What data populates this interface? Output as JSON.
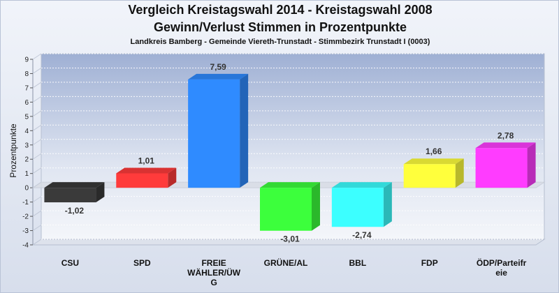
{
  "title": "Vergleich Kreistagswahl 2014 - Kreistagswahl 2008",
  "subtitle": "Gewinn/Verlust Stimmen in Prozentpunkte",
  "caption": "Landkreis Bamberg - Gemeinde Viereth-Trunstadt - Stimmbezirk Trunstadt I (0003)",
  "chart_data": {
    "type": "bar",
    "ylabel": "Prozentpunkte",
    "xlabel": "",
    "ylim": [
      -4,
      9
    ],
    "yticks": [
      "-4",
      "-3",
      "-2",
      "-1",
      "0",
      "1",
      "2",
      "3",
      "4",
      "5",
      "6",
      "7",
      "8",
      "9"
    ],
    "grid": true,
    "categories": [
      "CSU",
      "SPD",
      "FREIE WÄHLER/ÜW G",
      "GRÜNE/AL",
      "BBL",
      "FDP",
      "ÖDP/Parteifr eie"
    ],
    "category_lines": [
      [
        "CSU"
      ],
      [
        "SPD"
      ],
      [
        "FREIE",
        "WÄHLER/ÜW",
        "G"
      ],
      [
        "GRÜNE/AL"
      ],
      [
        "BBL"
      ],
      [
        "FDP"
      ],
      [
        "ÖDP/Parteifr",
        "eie"
      ]
    ],
    "values": [
      -1.02,
      1.01,
      7.59,
      -3.01,
      -2.74,
      1.66,
      2.78
    ],
    "value_labels": [
      "-1,02",
      "1,01",
      "7,59",
      "-3,01",
      "-2,74",
      "1,66",
      "2,78"
    ],
    "colors": [
      "#3a3a3a",
      "#ff3b3b",
      "#2f8bff",
      "#3cff3c",
      "#3cffff",
      "#ffff3c",
      "#ff3cff"
    ]
  }
}
